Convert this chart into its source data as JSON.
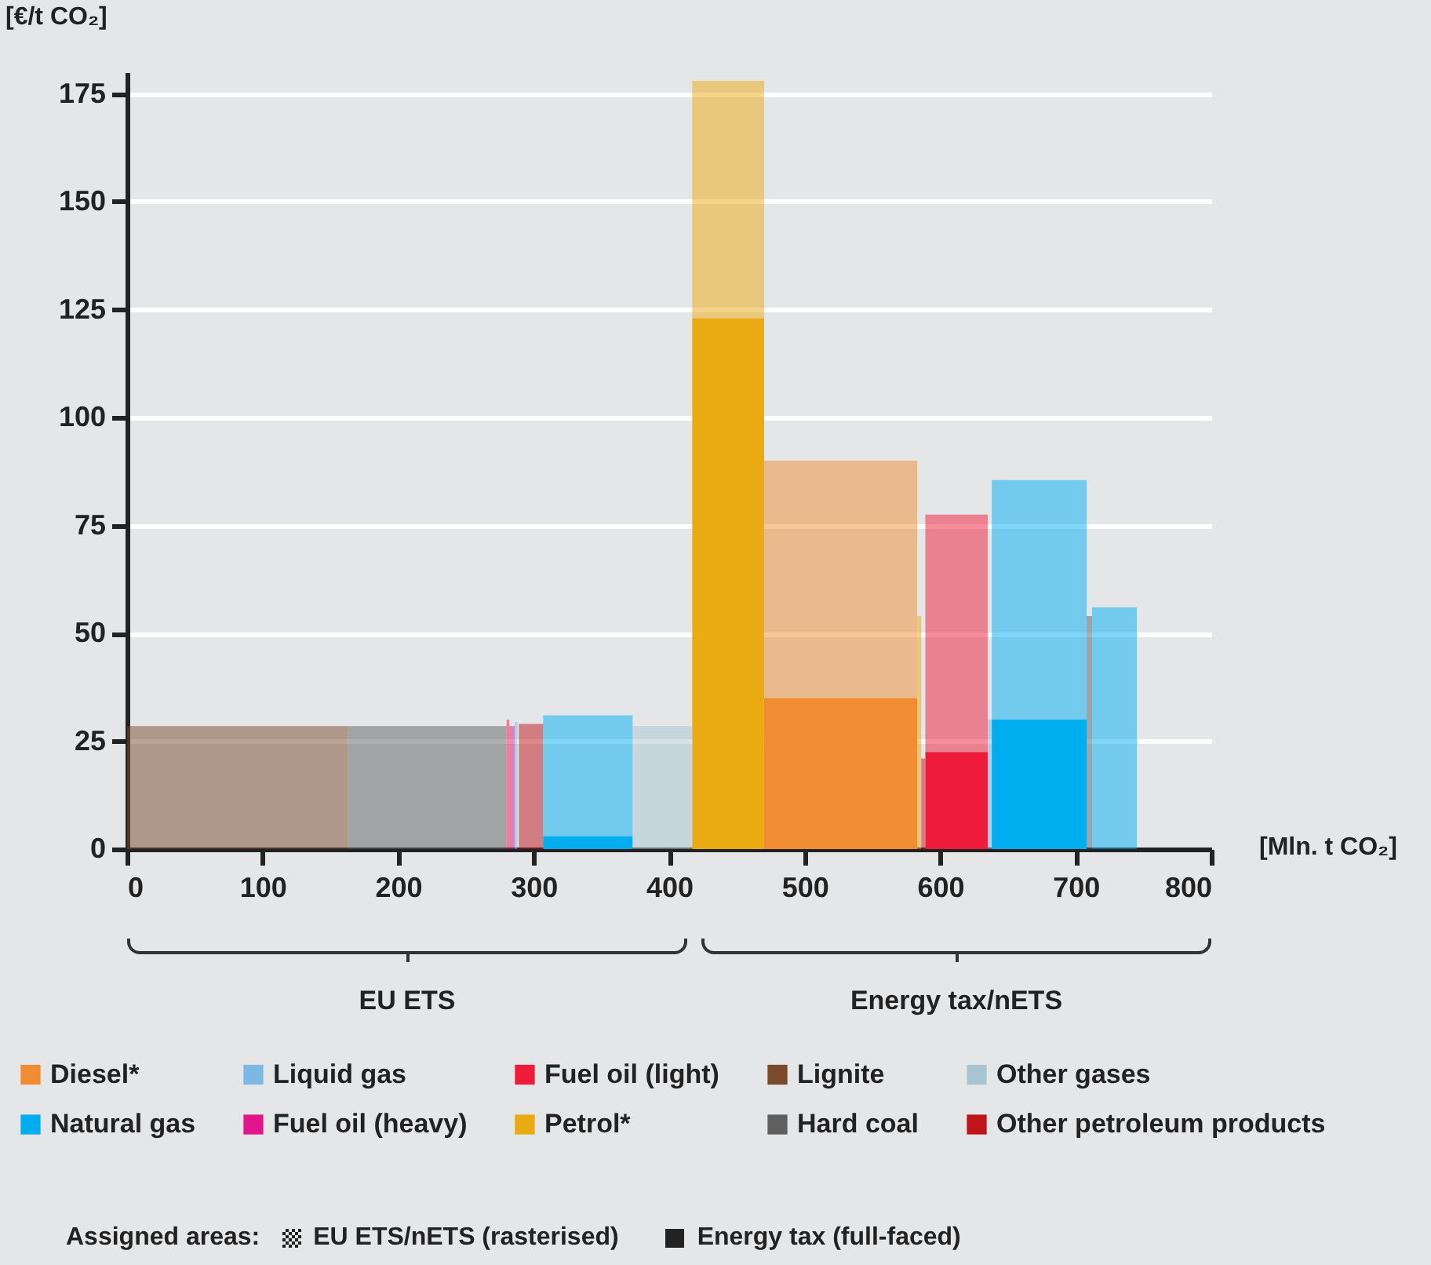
{
  "chart_data": {
    "type": "area",
    "xlabel": "[Mln. t CO₂]",
    "ylabel": "[€/t CO₂]",
    "xlim": [
      0,
      800
    ],
    "xticks": [
      0,
      100,
      200,
      300,
      400,
      500,
      600,
      700,
      800
    ],
    "ylim": [
      0,
      180
    ],
    "yticks": [
      0,
      25,
      50,
      75,
      100,
      125,
      150,
      175
    ],
    "grid": "y",
    "legend": "bottom",
    "annotations": [
      "EU ETS",
      "Energy tax/nETS",
      "Assigned areas:",
      "EU ETS/nETS (rasterised)",
      "Energy tax (full-faced)"
    ],
    "series": [
      {
        "name": "Diesel*",
        "color": "#f28c33",
        "x": [
          470,
          583
        ],
        "values": [
          35,
          35
        ],
        "lower": [
          35,
          35
        ],
        "upper": [
          90,
          90
        ]
      },
      {
        "name": "Natural gas",
        "color": "#00aeef",
        "x": [
          307,
          373
        ],
        "values": [
          3,
          3
        ],
        "lower": [
          3,
          3
        ],
        "upper": [
          31,
          31
        ]
      },
      {
        "name": "Liquid gas",
        "color": "#7db8e4",
        "x": [
          286,
          288
        ],
        "values": [
          29.5,
          29.5
        ]
      },
      {
        "name": "Fuel oil (heavy)",
        "color": "#e2158c",
        "x": [
          282,
          286
        ],
        "values": [
          28.5,
          28.5
        ]
      },
      {
        "name": "Fuel oil (light)",
        "color": "#ee1c3a",
        "x": [
          280,
          282
        ],
        "values": [
          30,
          30
        ]
      },
      {
        "name": "Petrol*",
        "color": "#eaaa12",
        "x": [
          417,
          470
        ],
        "values": [
          123,
          123
        ],
        "lower": [
          123,
          123
        ],
        "upper": [
          178,
          178
        ]
      },
      {
        "name": "Lignite",
        "color": "#7a4a2a",
        "x": [
          0,
          163
        ],
        "values": [
          28.5,
          28.5
        ]
      },
      {
        "name": "Hard coal",
        "color": "#5f5f5f",
        "x": [
          163,
          280
        ],
        "values": [
          28.5,
          28.5
        ]
      },
      {
        "name": "Other gases",
        "color": "#a9c4d2",
        "x": [
          373,
          417
        ],
        "values": [
          28.5,
          28.5
        ]
      },
      {
        "name": "Other petroleum products",
        "color": "#c0141b",
        "x": [
          289,
          307
        ],
        "values": [
          29,
          29
        ]
      },
      {
        "color": "#eaaa12",
        "x": [
          583,
          586
        ],
        "values": [
          54,
          54
        ]
      },
      {
        "color": "#c0141b",
        "x": [
          586,
          589
        ],
        "values": [
          21,
          21
        ]
      },
      {
        "color": "#ee1c3a",
        "x": [
          589,
          635
        ],
        "values": [
          22.5,
          22.5
        ],
        "lower": [
          22.5,
          22.5
        ],
        "upper": [
          77.5,
          77.5
        ]
      },
      {
        "color": "#7db8e4",
        "x": [
          635,
          638
        ],
        "values": [
          30,
          30
        ]
      },
      {
        "color": "#00aeef",
        "x": [
          638,
          708
        ],
        "values": [
          30,
          30
        ],
        "lower": [
          30,
          30
        ],
        "upper": [
          85.5,
          85.5
        ]
      },
      {
        "color": "#5f5f5f",
        "x": [
          708,
          712
        ],
        "values": [
          54,
          54
        ]
      },
      {
        "color": "#00aeef",
        "x": [
          712,
          745
        ],
        "values": [
          56,
          56
        ]
      }
    ]
  }
}
